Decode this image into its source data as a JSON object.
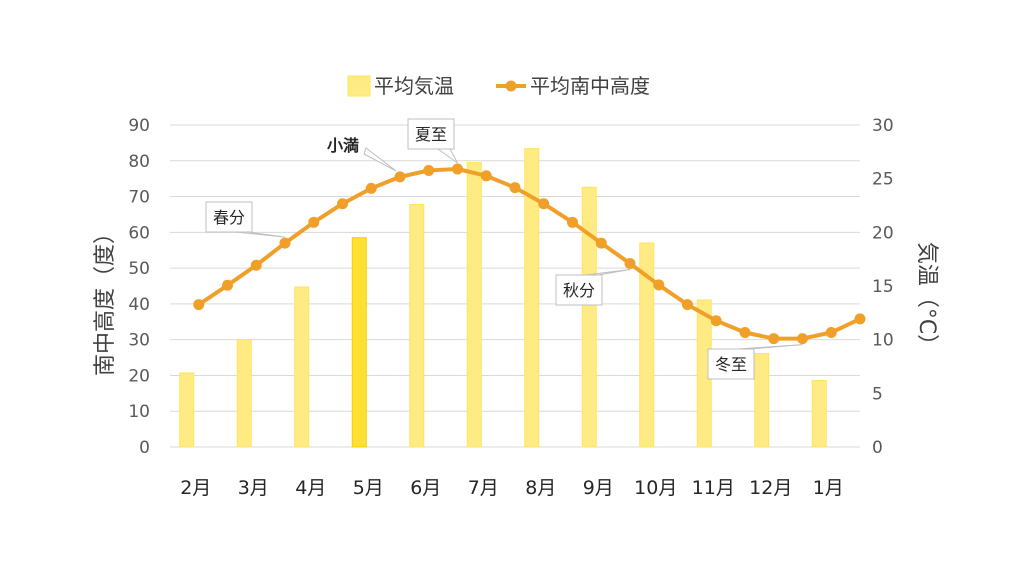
{
  "chart_data": {
    "type": "bar+line",
    "categories": [
      "2月",
      "3月",
      "4月",
      "5月",
      "6月",
      "7月",
      "8月",
      "9月",
      "10月",
      "11月",
      "12月",
      "1月"
    ],
    "series": [
      {
        "name": "平均気温",
        "type": "bar",
        "axis": "right",
        "values": [
          6.9,
          10.0,
          14.9,
          19.5,
          22.6,
          26.5,
          27.8,
          24.2,
          19.0,
          13.7,
          8.7,
          6.2
        ],
        "color": "#FFEB84",
        "highlight": {
          "category": "5月",
          "color": "#FFE033"
        }
      },
      {
        "name": "平均南中高度",
        "type": "line",
        "axis": "left",
        "x": [
          0,
          0.5,
          1,
          1.5,
          2,
          2.5,
          3,
          3.5,
          4,
          4.5,
          5,
          5.5,
          6,
          6.5,
          7,
          7.5,
          8,
          8.5,
          9,
          9.5,
          10,
          10.5,
          11,
          11.5
        ],
        "values": [
          39.8,
          45.2,
          50.8,
          57.0,
          62.8,
          68.0,
          72.3,
          75.5,
          77.3,
          77.7,
          75.8,
          72.5,
          68.0,
          62.8,
          57.0,
          51.3,
          45.3,
          39.8,
          35.3,
          32.0,
          30.3,
          30.3,
          32.0,
          35.8
        ],
        "color": "#F0A028"
      }
    ],
    "y_left": {
      "label": "南中高度（度）",
      "ticks": [
        0,
        10,
        20,
        30,
        40,
        50,
        60,
        70,
        80,
        90
      ],
      "min": 0,
      "max": 90
    },
    "y_right": {
      "label": "気温（°C）",
      "ticks": [
        0,
        5,
        10,
        15,
        20,
        25,
        30
      ],
      "min": 0,
      "max": 30
    },
    "grid": true,
    "legend_position": "top",
    "annotations": [
      {
        "text": "春分",
        "target_x": 1.5
      },
      {
        "text": "小満",
        "target_x": 3.5,
        "bold": true
      },
      {
        "text": "夏至",
        "target_x": 4.5
      },
      {
        "text": "秋分",
        "target_x": 7.5
      },
      {
        "text": "冬至",
        "target_x": 10.5
      }
    ]
  }
}
